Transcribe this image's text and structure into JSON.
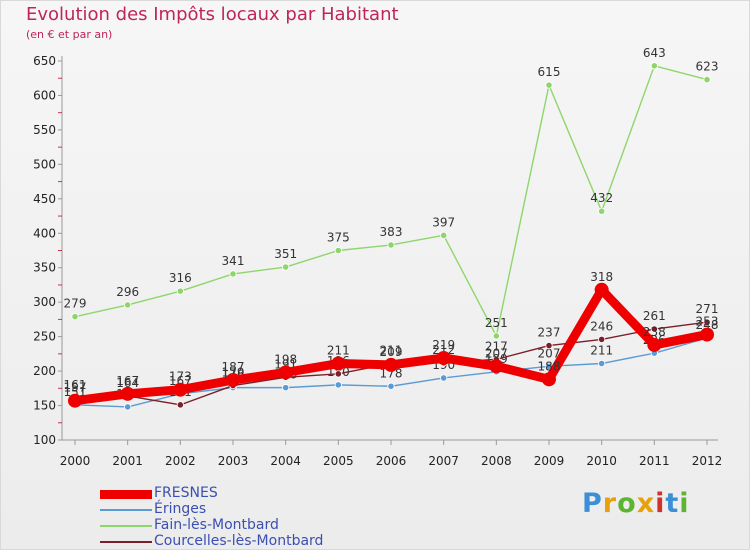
{
  "chart_data": {
    "type": "line",
    "title": "Evolution des Impôts locaux par Habitant",
    "subtitle": "(en € et par an)",
    "xlabel": "",
    "ylabel": "",
    "ylim": [
      100,
      650
    ],
    "yticks": [
      100,
      150,
      200,
      250,
      300,
      350,
      400,
      450,
      500,
      550,
      600,
      650
    ],
    "categories": [
      "2000",
      "2001",
      "2002",
      "2003",
      "2004",
      "2005",
      "2006",
      "2007",
      "2008",
      "2009",
      "2010",
      "2011",
      "2012"
    ],
    "series": [
      {
        "name": "FRESNES",
        "color": "#ee0000",
        "width": "thick",
        "values": [
          157,
          167,
          173,
          187,
          198,
          211,
          209,
          219,
          207,
          188,
          318,
          238,
          253
        ]
      },
      {
        "name": "Éringes",
        "color": "#5b9bd5",
        "width": "thin",
        "values": [
          151,
          148,
          167,
          176,
          176,
          180,
          178,
          190,
          199,
          207,
          211,
          226,
          248
        ]
      },
      {
        "name": "Fain-lès-Montbard",
        "color": "#8fd66a",
        "width": "thin",
        "values": [
          279,
          296,
          316,
          341,
          351,
          375,
          383,
          397,
          251,
          615,
          432,
          643,
          623
        ]
      },
      {
        "name": "Courcelles-lès-Montbard",
        "color": "#7b1f2a",
        "width": "thin",
        "values": [
          161,
          164,
          151,
          179,
          191,
          196,
          211,
          212,
          217,
          237,
          246,
          261,
          271
        ]
      }
    ],
    "legend_position": "bottom-left",
    "grid": false
  },
  "logo": {
    "text": "Proxiti",
    "colors": [
      "#3a8fd6",
      "#e8a10c",
      "#5cb531",
      "#e8a10c",
      "#d2312b",
      "#3a8fd6",
      "#5cb531"
    ]
  }
}
